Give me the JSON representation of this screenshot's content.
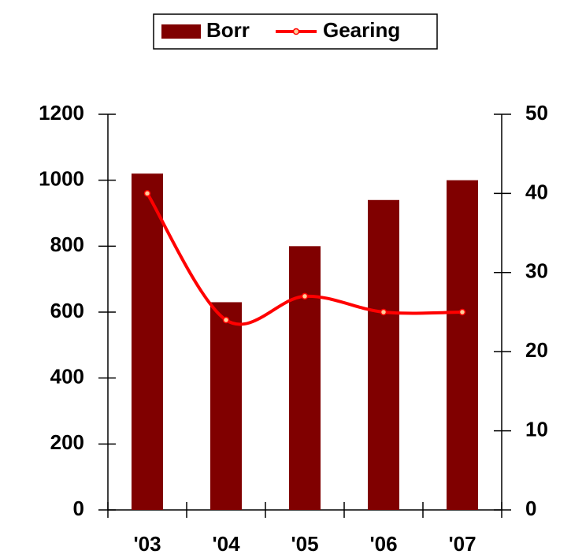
{
  "chart_data": {
    "type": "bar",
    "categories": [
      "'03",
      "'04",
      "'05",
      "'06",
      "'07"
    ],
    "series": [
      {
        "name": "Borr",
        "type": "bar",
        "color": "#800000",
        "values": [
          1020,
          630,
          800,
          940,
          1000
        ]
      },
      {
        "name": "Gearing",
        "type": "line",
        "axis": "y2",
        "color": "#ff0000",
        "marker_color": "#ffcc99",
        "values": [
          40,
          24,
          27,
          25,
          25
        ]
      }
    ],
    "ylim": [
      0,
      1200
    ],
    "yticks": [
      0,
      200,
      400,
      600,
      800,
      1000,
      1200
    ],
    "y2lim": [
      0,
      50
    ],
    "y2ticks": [
      0,
      10,
      20,
      30,
      40,
      50
    ],
    "legend": "top"
  }
}
